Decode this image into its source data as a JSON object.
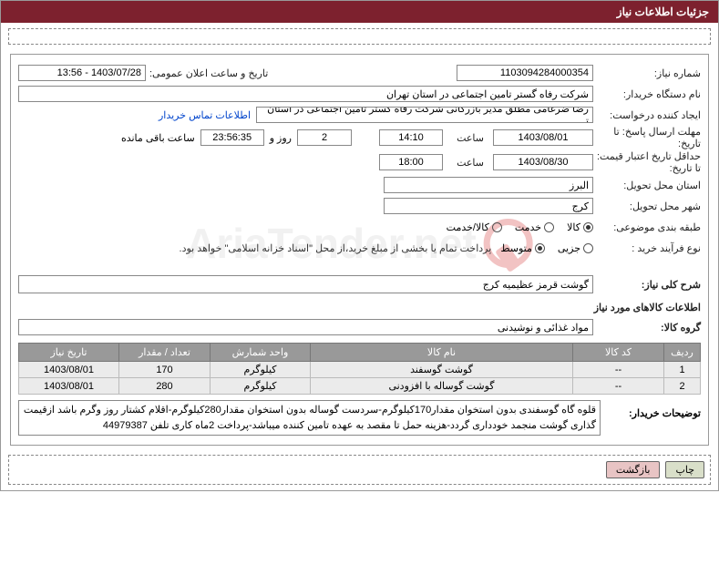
{
  "header": {
    "title": "جزئیات اطلاعات نیاز"
  },
  "fields": {
    "need_no_label": "شماره نیاز:",
    "need_no": "1103094284000354",
    "announce_label": "تاریخ و ساعت اعلان عمومی:",
    "announce_val": "1403/07/28 - 13:56",
    "buyer_org_label": "نام دستگاه خریدار:",
    "buyer_org": "شرکت رفاه گستر تامین اجتماعی در استان تهران",
    "requester_label": "ایجاد کننده درخواست:",
    "requester": "رضا ضرغامی مطلق مدیر بازرگانی شرکت رفاه گستر تامین اجتماعی در استان تـ",
    "contact_link": "اطلاعات تماس خریدار",
    "deadline_reply_label": "مهلت ارسال پاسخ: تا تاریخ:",
    "deadline_reply_date": "1403/08/01",
    "time_label": "ساعت",
    "deadline_reply_time": "14:10",
    "remain_days": "2",
    "days_and": "روز و",
    "remain_time": "23:56:35",
    "remain_suffix": "ساعت باقی مانده",
    "validity_label": "حداقل تاریخ اعتبار قیمت: تا تاریخ:",
    "validity_date": "1403/08/30",
    "validity_time": "18:00",
    "province_label": "استان محل تحویل:",
    "province": "البرز",
    "city_label": "شهر محل تحویل:",
    "city": "کرج",
    "category_label": "طبقه بندی موضوعی:",
    "cat_goods": "کالا",
    "cat_service": "خدمت",
    "cat_goods_service": "کالا/خدمت",
    "purchase_type_label": "نوع فرآیند خرید :",
    "pt_small": "جزیی",
    "pt_medium": "متوسط",
    "pt_note": "پرداخت تمام یا بخشی از مبلغ خرید،از محل \"اسناد خزانه اسلامی\" خواهد بود.",
    "general_desc_label": "شرح کلی نیاز:",
    "general_desc": "گوشت قرمز عظیمیه کرج",
    "items_section": "اطلاعات کالاهای مورد نیاز",
    "group_label": "گروه کالا:",
    "group_val": "مواد غذائی و نوشیدنی"
  },
  "table": {
    "headers": {
      "row": "ردیف",
      "code": "کد کالا",
      "name": "نام کالا",
      "unit": "واحد شمارش",
      "qty": "تعداد / مقدار",
      "date": "تاریخ نیاز"
    },
    "rows": [
      {
        "n": "1",
        "code": "--",
        "name": "گوشت گوسفند",
        "unit": "کیلوگرم",
        "qty": "170",
        "date": "1403/08/01"
      },
      {
        "n": "2",
        "code": "--",
        "name": "گوشت گوساله با افزودنی",
        "unit": "کیلوگرم",
        "qty": "280",
        "date": "1403/08/01"
      }
    ]
  },
  "buyer_desc_label": "توضیحات خریدار:",
  "buyer_desc": "قلوه گاه گوسفندی بدون استخوان مقدار170کیلوگرم-سردست گوساله بدون استخوان مقدار280کیلوگرم-اقلام کشتار روز وگرم باشد ازقیمت گذاری گوشت منجمد خودداری گردد-هزینه حمل تا مقصد به عهده تامین کننده میباشد-پرداخت 2ماه کاری تلفن 44979387",
  "buttons": {
    "print": "چاپ",
    "back": "بازگشت"
  },
  "watermark": "AriaTender.net",
  "colors": {
    "header_bg": "#7d212e",
    "th_bg": "#999999",
    "td_bg": "#ebebeb",
    "link": "#0044cc"
  }
}
